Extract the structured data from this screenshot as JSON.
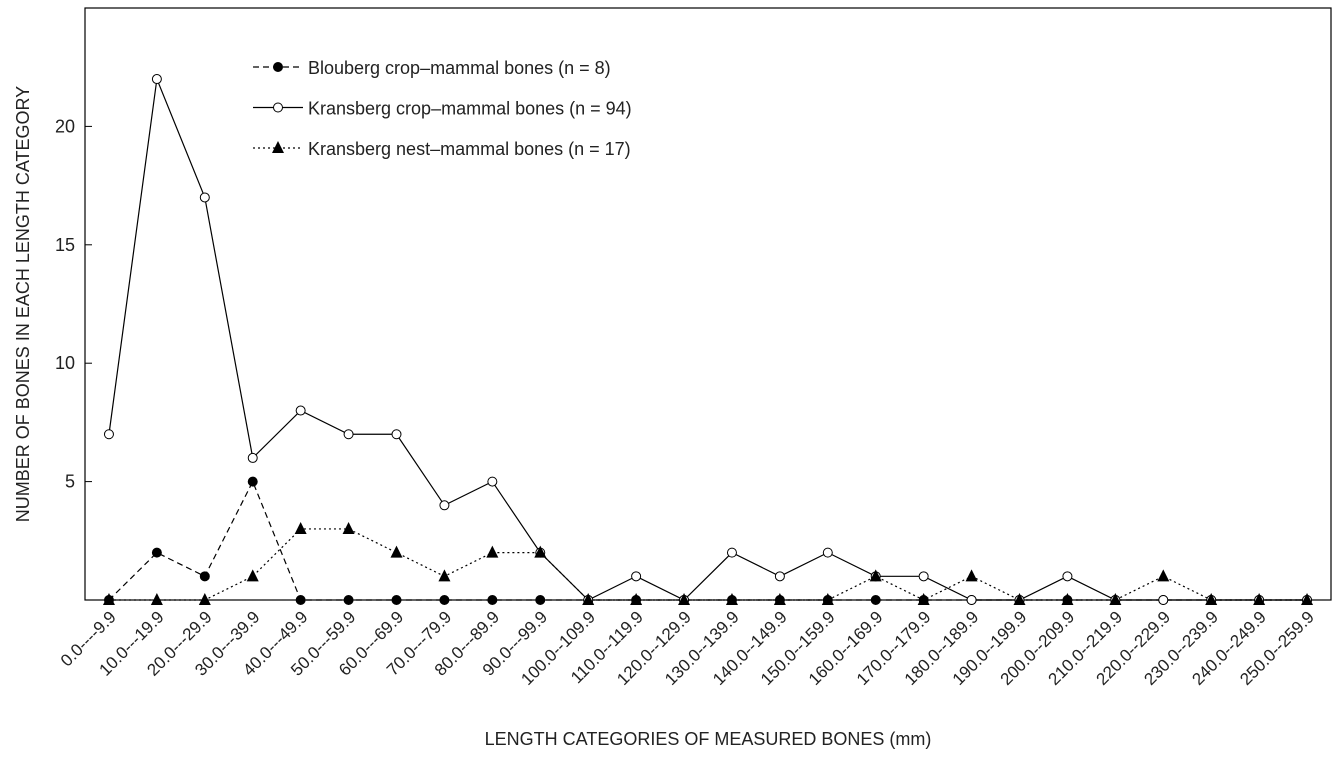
{
  "chart_data": {
    "type": "line",
    "x_label": "LENGTH CATEGORIES OF MEASURED BONES (mm)",
    "y_label": "NUMBER OF BONES  IN EACH LENGTH CATEGORY",
    "categories": [
      "0.0----9.9",
      "10.0---19.9",
      "20.0---29.9",
      "30.0---39.9",
      "40.0---49.9",
      "50.0---59.9",
      "60.0---69.9",
      "70.0---79.9",
      "80.0---89.9",
      "90.0---99.9",
      "100.0--109.9",
      "110.0--119.9",
      "120.0--129.9",
      "130.0--139.9",
      "140.0--149.9",
      "150.0--159.9",
      "160.0--169.9",
      "170.0--179.9",
      "180.0--189.9",
      "190.0--199.9",
      "200.0--209.9",
      "210.0--219.9",
      "220.0--229.9",
      "230.0--239.9",
      "240.0--249.9",
      "250.0--259.9"
    ],
    "series": [
      {
        "name": "Blouberg crop–mammal bones (n = 8)",
        "color": "#000000",
        "dash": "6,4",
        "marker": "filled-circle",
        "values": [
          0,
          2,
          1,
          5,
          0,
          0,
          0,
          0,
          0,
          0,
          0,
          0,
          0,
          0,
          0,
          0,
          0,
          0,
          0,
          0,
          0,
          0,
          0,
          0,
          0,
          0
        ]
      },
      {
        "name": "Kransberg crop–mammal bones (n = 94)",
        "color": "#000000",
        "dash": "none",
        "marker": "open-circle",
        "values": [
          7,
          22,
          17,
          6,
          8,
          7,
          7,
          4,
          5,
          2,
          0,
          1,
          0,
          2,
          1,
          2,
          1,
          1,
          0,
          0,
          1,
          0,
          0,
          0,
          0,
          0
        ]
      },
      {
        "name": "Kransberg nest–mammal bones (n = 17)",
        "color": "#000000",
        "dash": "2,3",
        "marker": "triangle",
        "values": [
          0,
          0,
          0,
          1,
          3,
          3,
          2,
          1,
          2,
          2,
          0,
          0,
          0,
          0,
          0,
          0,
          1,
          0,
          1,
          0,
          0,
          0,
          1,
          0,
          0,
          0
        ]
      }
    ],
    "ylim": [
      0,
      25
    ],
    "yticks": [
      5,
      10,
      15,
      20
    ],
    "grid": false
  }
}
